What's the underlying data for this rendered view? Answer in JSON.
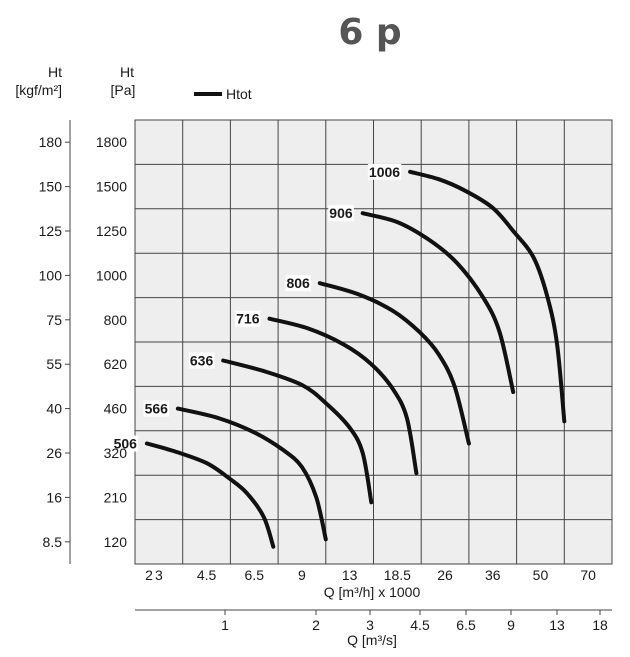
{
  "page_title": "6 p",
  "chart_data": {
    "type": "line",
    "legend": {
      "label": "Htot",
      "placement": "top-left"
    },
    "grid": true,
    "y_axes": [
      {
        "id": "pa",
        "label_lines": [
          "Ht",
          "[Pa]"
        ],
        "ticks": [
          "1800",
          "1500",
          "1250",
          "1000",
          "800",
          "620",
          "460",
          "320",
          "210",
          "120"
        ]
      },
      {
        "id": "kgf",
        "label_lines": [
          "Ht",
          "[kgf/m²]"
        ],
        "ticks": [
          "180",
          "150",
          "125",
          "100",
          "75",
          "55",
          "40",
          "26",
          "16",
          "8.5"
        ]
      }
    ],
    "x_axes": [
      {
        "id": "qh",
        "label": "Q [m³/h] x 1000",
        "ticks": [
          "2",
          "3",
          "4.5",
          "6.5",
          "9",
          "13",
          "18.5",
          "26",
          "36",
          "50",
          "70"
        ]
      },
      {
        "id": "qs",
        "label": "Q [m³/s]",
        "ticks": [
          "1",
          "2",
          "3",
          "4.5",
          "6.5",
          "9",
          "13",
          "18"
        ]
      }
    ],
    "series": [
      {
        "name": "506",
        "points": [
          [
            2.5,
            350
          ],
          [
            3.5,
            325
          ],
          [
            4.5,
            295
          ],
          [
            5.5,
            255
          ],
          [
            6.2,
            220
          ],
          [
            7.0,
            170
          ],
          [
            7.5,
            110
          ]
        ]
      },
      {
        "name": "566",
        "points": [
          [
            3.6,
            460
          ],
          [
            5.0,
            430
          ],
          [
            6.5,
            385
          ],
          [
            8.0,
            330
          ],
          [
            9.0,
            285
          ],
          [
            10.2,
            210
          ],
          [
            11.0,
            125
          ]
        ]
      },
      {
        "name": "636",
        "points": [
          [
            5.2,
            635
          ],
          [
            7.0,
            595
          ],
          [
            9.0,
            545
          ],
          [
            11.0,
            480
          ],
          [
            13.0,
            400
          ],
          [
            14.5,
            320
          ],
          [
            15.5,
            200
          ]
        ]
      },
      {
        "name": "716",
        "points": [
          [
            7.3,
            805
          ],
          [
            9.5,
            765
          ],
          [
            12.5,
            700
          ],
          [
            15.5,
            620
          ],
          [
            18.0,
            530
          ],
          [
            20.0,
            430
          ],
          [
            21.5,
            270
          ]
        ]
      },
      {
        "name": "806",
        "points": [
          [
            10.5,
            965
          ],
          [
            14.0,
            915
          ],
          [
            18.0,
            840
          ],
          [
            22.0,
            750
          ],
          [
            25.0,
            660
          ],
          [
            28.0,
            540
          ],
          [
            31.0,
            350
          ]
        ]
      },
      {
        "name": "906",
        "points": [
          [
            14.5,
            1350
          ],
          [
            18.5,
            1300
          ],
          [
            23.5,
            1200
          ],
          [
            28.5,
            1070
          ],
          [
            34.0,
            900
          ],
          [
            38.0,
            750
          ],
          [
            42.0,
            520
          ]
        ]
      },
      {
        "name": "1006",
        "points": [
          [
            20.5,
            1600
          ],
          [
            25.0,
            1550
          ],
          [
            30.0,
            1480
          ],
          [
            36.0,
            1380
          ],
          [
            42.0,
            1250
          ],
          [
            48.0,
            1100
          ],
          [
            53.0,
            900
          ],
          [
            57.0,
            700
          ],
          [
            60.0,
            420
          ]
        ]
      }
    ]
  }
}
